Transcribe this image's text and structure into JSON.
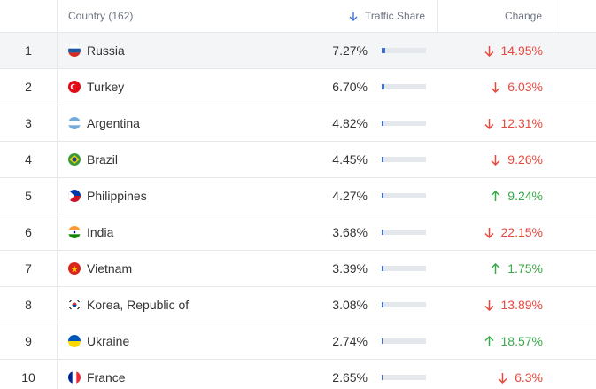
{
  "header": {
    "rank": "",
    "country": "Country (162)",
    "share": "Traffic Share",
    "change": "Change"
  },
  "rows": [
    {
      "rank": "1",
      "country": "Russia",
      "share": {
        "value": 7.27,
        "label": "7.27%"
      },
      "change": "14.95%"
    },
    {
      "rank": "2",
      "country": "Turkey",
      "share": {
        "value": 6.7,
        "label": "6.70%"
      },
      "change": "6.03%"
    },
    {
      "rank": "3",
      "country": "Argentina",
      "share": {
        "value": 4.82,
        "label": "4.82%"
      },
      "change": "12.31%"
    },
    {
      "rank": "4",
      "country": "Brazil",
      "share": {
        "value": 4.45,
        "label": "4.45%"
      },
      "change": "9.26%"
    },
    {
      "rank": "5",
      "country": "Philippines",
      "share": {
        "value": 4.27,
        "label": "4.27%"
      },
      "change": "9.24%"
    },
    {
      "rank": "6",
      "country": "India",
      "share": {
        "value": 3.68,
        "label": "3.68%"
      },
      "change": "22.15%"
    },
    {
      "rank": "7",
      "country": "Vietnam",
      "share": {
        "value": 3.39,
        "label": "3.39%"
      },
      "change": "1.75%"
    },
    {
      "rank": "8",
      "country": "Korea, Republic of",
      "share": {
        "value": 3.08,
        "label": "3.08%"
      },
      "change": "13.89%"
    },
    {
      "rank": "9",
      "country": "Ukraine",
      "share": {
        "value": 2.74,
        "label": "2.74%"
      },
      "change": "18.57%"
    },
    {
      "rank": "10",
      "country": "France",
      "share": {
        "value": 2.65,
        "label": "2.65%"
      },
      "change": "6.3%"
    }
  ]
}
